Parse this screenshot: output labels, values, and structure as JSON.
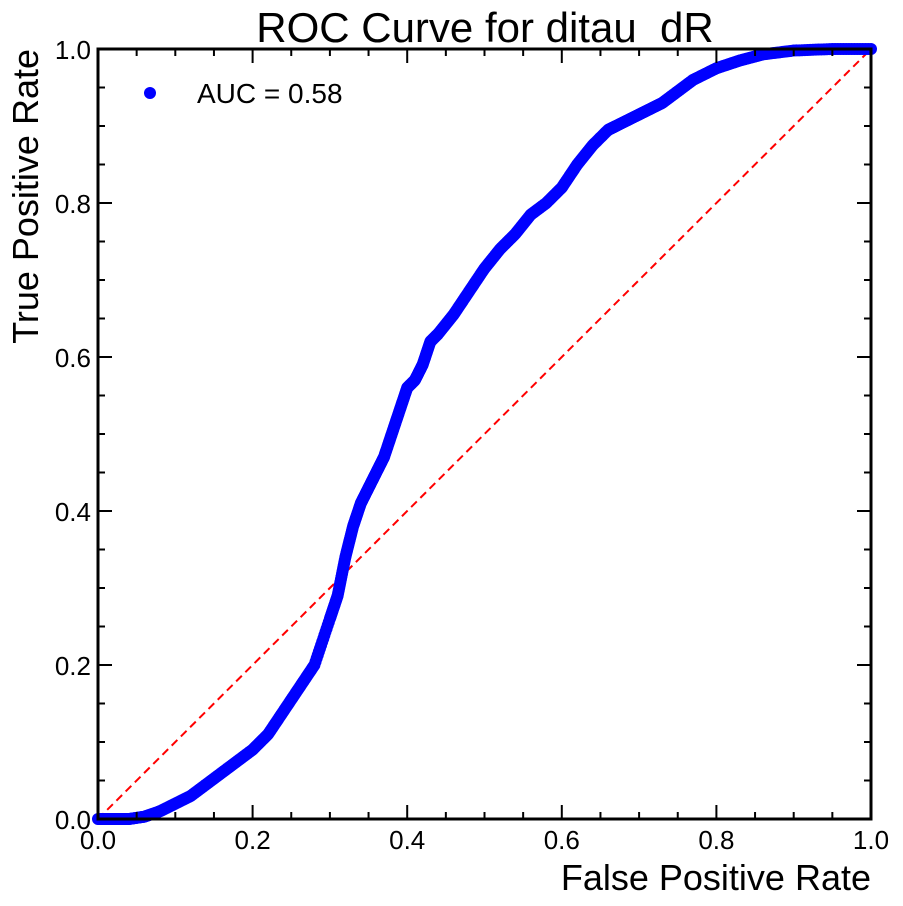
{
  "chart_data": {
    "type": "scatter",
    "title": "ROC Curve for ditau_dR",
    "xlabel": "False Positive Rate",
    "ylabel": "True Positive Rate",
    "xlim": [
      0.0,
      1.0
    ],
    "ylim": [
      0.0,
      1.0
    ],
    "xticks": [
      "0.0",
      "0.2",
      "0.4",
      "0.6",
      "0.8",
      "1.0"
    ],
    "yticks": [
      "0.0",
      "0.2",
      "0.4",
      "0.6",
      "0.8",
      "1.0"
    ],
    "grid": false,
    "legend_position": "top-left",
    "series": [
      {
        "name": "AUC = 0.58",
        "color": "#0000ff",
        "marker": "circle",
        "x": [
          0.0,
          0.02,
          0.04,
          0.06,
          0.08,
          0.1,
          0.12,
          0.14,
          0.16,
          0.18,
          0.2,
          0.22,
          0.24,
          0.26,
          0.28,
          0.3,
          0.31,
          0.32,
          0.33,
          0.34,
          0.35,
          0.36,
          0.37,
          0.38,
          0.39,
          0.4,
          0.41,
          0.42,
          0.43,
          0.44,
          0.46,
          0.48,
          0.5,
          0.52,
          0.54,
          0.56,
          0.58,
          0.6,
          0.62,
          0.64,
          0.66,
          0.67,
          0.69,
          0.71,
          0.73,
          0.75,
          0.77,
          0.8,
          0.83,
          0.86,
          0.9,
          0.95,
          1.0
        ],
        "y": [
          0.0,
          0.0,
          0.0,
          0.003,
          0.01,
          0.02,
          0.03,
          0.045,
          0.06,
          0.075,
          0.09,
          0.11,
          0.14,
          0.17,
          0.2,
          0.26,
          0.29,
          0.34,
          0.38,
          0.41,
          0.43,
          0.45,
          0.47,
          0.5,
          0.53,
          0.56,
          0.57,
          0.59,
          0.62,
          0.63,
          0.655,
          0.685,
          0.715,
          0.74,
          0.76,
          0.785,
          0.8,
          0.82,
          0.85,
          0.875,
          0.895,
          0.9,
          0.91,
          0.92,
          0.93,
          0.945,
          0.96,
          0.975,
          0.985,
          0.993,
          0.998,
          1.0,
          1.0
        ]
      }
    ],
    "reference_line": {
      "color": "#ff0000",
      "style": "dashed",
      "x": [
        0.0,
        1.0
      ],
      "y": [
        0.0,
        1.0
      ]
    }
  }
}
